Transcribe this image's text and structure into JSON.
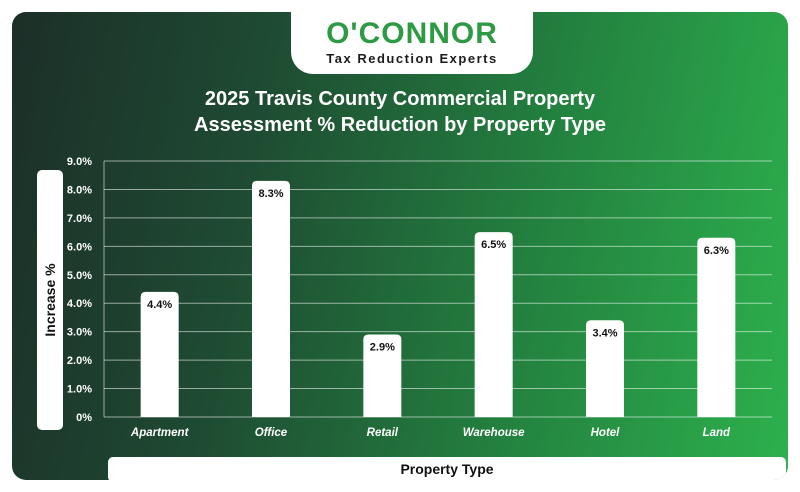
{
  "brand": {
    "name": "O'CONNOR",
    "tagline": "Tax Reduction Experts",
    "accent_color": "#2f9a44"
  },
  "chart_data": {
    "type": "bar",
    "title_line1": "2025 Travis County Commercial Property",
    "title_line2": "Assessment % Reduction by Property Type",
    "xlabel": "Property Type",
    "ylabel": "Increase %",
    "categories": [
      "Apartment",
      "Office",
      "Retail",
      "Warehouse",
      "Hotel",
      "Land"
    ],
    "values": [
      4.4,
      8.3,
      2.9,
      6.5,
      3.4,
      6.3
    ],
    "data_labels": [
      "4.4%",
      "8.3%",
      "2.9%",
      "6.5%",
      "3.4%",
      "6.3%"
    ],
    "yticks": [
      0,
      1,
      2,
      3,
      4,
      5,
      6,
      7,
      8,
      9
    ],
    "ytick_labels": [
      "0%",
      "1.0%",
      "2.0%",
      "3.0%",
      "4.0%",
      "5.0%",
      "6.0%",
      "7.0%",
      "8.0%",
      "9.0%"
    ],
    "ylim": [
      0,
      9
    ],
    "grid": true,
    "bar_color": "#ffffff",
    "background_gradient": [
      "#1c2f28",
      "#2db14d"
    ]
  }
}
